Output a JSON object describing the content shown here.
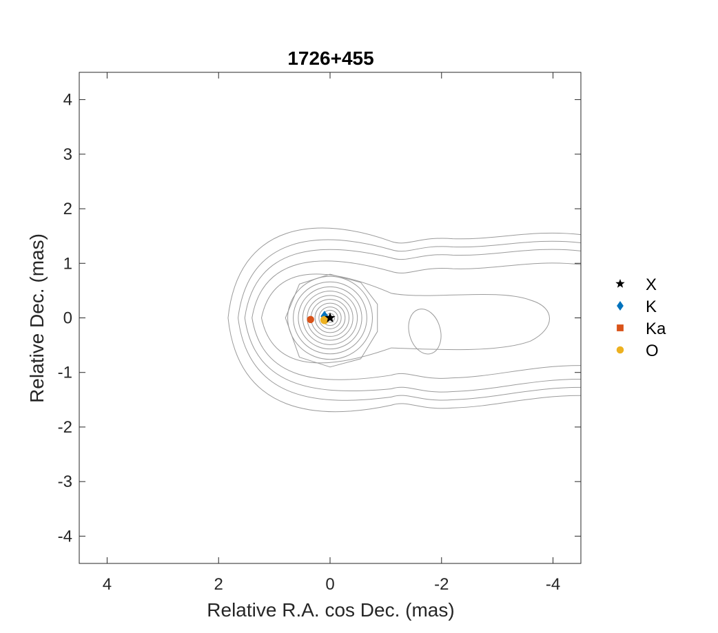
{
  "chart_data": {
    "type": "scatter",
    "title": "1726+455",
    "xlabel": "Relative R.A. cos Dec. (mas)",
    "ylabel": "Relative Dec. (mas)",
    "xlim": [
      4.5,
      -4.5
    ],
    "ylim": [
      -4.5,
      4.5
    ],
    "x_reversed": true,
    "xticks": [
      4,
      2,
      0,
      -2,
      -4
    ],
    "xtick_labels": [
      "4",
      "2",
      "0",
      "-2",
      "-4"
    ],
    "yticks": [
      4,
      3,
      2,
      1,
      0,
      -1,
      -2,
      -3,
      -4
    ],
    "ytick_labels": [
      "4",
      "3",
      "2",
      "1",
      "0",
      "-1",
      "-2",
      "-3",
      "-4"
    ],
    "grid": false,
    "legend_position": "right",
    "series": [
      {
        "name": "X",
        "marker": "star",
        "color": "#000000",
        "x": [
          0.0
        ],
        "y": [
          0.0
        ]
      },
      {
        "name": "K",
        "marker": "diamond",
        "color": "#0072BD",
        "x": [
          0.1
        ],
        "y": [
          0.03
        ]
      },
      {
        "name": "Ka",
        "marker": "square",
        "color": "#D95319",
        "x": [
          0.35
        ],
        "y": [
          -0.03
        ]
      },
      {
        "name": "O",
        "marker": "circle",
        "color": "#EDB120",
        "x": [
          0.1
        ],
        "y": [
          -0.04
        ]
      }
    ],
    "contours": {
      "color": "#9a9a9a",
      "center_circles": {
        "cx": 0.0,
        "cy": 0.0,
        "radii": [
          0.08,
          0.14,
          0.2,
          0.27,
          0.34,
          0.41,
          0.49,
          0.57,
          0.66,
          0.76
        ]
      },
      "outer_levels": [
        {
          "left": -0.7,
          "lower": [
            [
              0.55,
              -1.0
            ],
            [
              0,
              -0.9
            ],
            [
              -0.6,
              -0.55
            ],
            [
              -0.7,
              0
            ]
          ],
          "closed": true
        },
        {
          "left": 1.23,
          "top": 0.92,
          "bottom": -0.92,
          "tail_upper": 0.45,
          "tail_lower": -0.55,
          "tail_end": -4.0
        },
        {
          "left": 1.4,
          "top": 1.12,
          "bottom": -1.15,
          "tail_upper": 0.85,
          "tail_lower": -1.05,
          "tail_end": -4.5
        },
        {
          "left": 1.53,
          "top": 1.32,
          "bottom": -1.32,
          "tail_upper": 1.1,
          "tail_lower": -1.3,
          "tail_end": -4.5
        },
        {
          "left": 1.65,
          "top": 1.52,
          "bottom": -1.52,
          "tail_upper": 1.25,
          "tail_lower": -1.45,
          "tail_end": -4.5
        },
        {
          "left": 1.83,
          "top": 1.78,
          "bottom": -1.78,
          "tail_upper": 1.4,
          "tail_lower": -1.6,
          "tail_end": -4.5
        }
      ],
      "knot": {
        "cx": -1.7,
        "cy": -0.25,
        "rx": 0.28,
        "ry": 0.42
      }
    }
  }
}
